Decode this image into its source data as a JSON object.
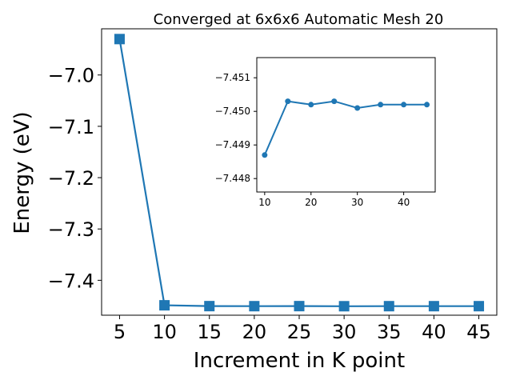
{
  "chart_data": [
    {
      "type": "line",
      "title": "Converged at 6x6x6 Automatic Mesh 20",
      "xlabel": "Increment in K point",
      "ylabel": "Energy (eV)",
      "x": [
        5,
        10,
        15,
        20,
        25,
        30,
        35,
        40,
        45
      ],
      "series": [
        {
          "values": [
            -6.93,
            -7.4487,
            -7.4503,
            -7.4504,
            -7.4503,
            -7.4505,
            -7.4504,
            -7.4504,
            -7.4504
          ],
          "color": "#1f77b4",
          "marker": "square"
        }
      ],
      "xlim": [
        3,
        47
      ],
      "ylim": [
        -7.468,
        -6.91
      ],
      "xticks": [
        5,
        10,
        15,
        20,
        25,
        30,
        35,
        40,
        45
      ],
      "yticks": [
        -7.4,
        -7.3,
        -7.2,
        -7.1,
        -7.0
      ],
      "ytick_labels": [
        "−7.4",
        "−7.3",
        "−7.2",
        "−7.1",
        "−7.0"
      ],
      "grid": false
    },
    {
      "type": "line",
      "title": "",
      "xlabel": "",
      "ylabel": "",
      "x": [
        10,
        15,
        20,
        25,
        30,
        35,
        40,
        45
      ],
      "series": [
        {
          "values": [
            -7.4487,
            -7.4503,
            -7.4502,
            -7.4503,
            -7.4501,
            -7.4502,
            -7.4502,
            -7.4502
          ],
          "color": "#1f77b4",
          "marker": "circle"
        }
      ],
      "xlim": [
        8.3,
        46.8
      ],
      "ylim": [
        -7.4516,
        -7.4476
      ],
      "y_inverted": true,
      "xticks": [
        10,
        20,
        30,
        40
      ],
      "yticks": [
        -7.451,
        -7.45,
        -7.449,
        -7.448
      ],
      "ytick_labels": [
        "−7.451",
        "−7.450",
        "−7.449",
        "−7.448"
      ],
      "grid": false
    }
  ]
}
